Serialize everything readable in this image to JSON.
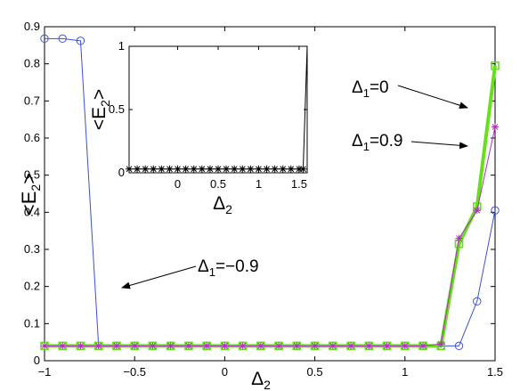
{
  "chart_data": [
    {
      "type": "line",
      "title": "",
      "xlabel": "Δ2",
      "ylabel": "<E2>",
      "xlim": [
        -1,
        1.5
      ],
      "ylim": [
        0,
        0.9
      ],
      "xticks": [
        -1,
        -0.5,
        0,
        0.5,
        1,
        1.5
      ],
      "xtick_labels": [
        "−1",
        "−0.5",
        "0",
        "0.5",
        "1",
        "1.5"
      ],
      "yticks": [
        0,
        0.1,
        0.2,
        0.3,
        0.4,
        0.5,
        0.6,
        0.7,
        0.8,
        0.9
      ],
      "ytick_labels": [
        "0",
        "0.1",
        "0.2",
        "0.3",
        "0.4",
        "0.5",
        "0.6",
        "0.7",
        "0.8",
        "0.9"
      ],
      "grid": false,
      "x": [
        -1,
        -0.9,
        -0.8,
        -0.7,
        -0.6,
        -0.5,
        -0.4,
        -0.3,
        -0.2,
        -0.1,
        0,
        0.1,
        0.2,
        0.3,
        0.4,
        0.5,
        0.6,
        0.7,
        0.8,
        0.9,
        1.0,
        1.1,
        1.2,
        1.3,
        1.4,
        1.5
      ],
      "series": [
        {
          "color": "#3c50d8",
          "marker": "circle",
          "width": 1,
          "values": [
            0.868,
            0.868,
            0.862,
            0.04,
            0.04,
            0.04,
            0.04,
            0.04,
            0.04,
            0.04,
            0.04,
            0.04,
            0.04,
            0.04,
            0.04,
            0.04,
            0.04,
            0.04,
            0.04,
            0.04,
            0.04,
            0.04,
            0.04,
            0.04,
            0.16,
            0.405
          ]
        },
        {
          "color": "#66e01a",
          "marker": "square",
          "width": 4,
          "values": [
            0.04,
            0.04,
            0.04,
            0.04,
            0.04,
            0.04,
            0.04,
            0.04,
            0.04,
            0.04,
            0.04,
            0.04,
            0.04,
            0.04,
            0.04,
            0.04,
            0.04,
            0.04,
            0.04,
            0.04,
            0.04,
            0.04,
            0.04,
            0.315,
            0.415,
            0.795
          ]
        },
        {
          "color": "#b030c0",
          "marker": "star",
          "width": 1,
          "values": [
            0.04,
            0.04,
            0.04,
            0.04,
            0.04,
            0.04,
            0.04,
            0.04,
            0.04,
            0.04,
            0.04,
            0.04,
            0.04,
            0.04,
            0.04,
            0.04,
            0.04,
            0.04,
            0.04,
            0.04,
            0.04,
            0.04,
            0.045,
            0.33,
            0.405,
            0.63
          ]
        }
      ],
      "annotations": [
        {
          "text": "Δ1=0",
          "points_to": [
            1.5,
            0.795
          ]
        },
        {
          "text": "Δ1=0.9",
          "points_to": [
            1.5,
            0.63
          ]
        },
        {
          "text": "Δ1=−0.9",
          "points_to": [
            -0.7,
            0.04
          ]
        }
      ]
    },
    {
      "type": "line",
      "title": "",
      "xlabel": "Δ2",
      "ylabel": "<E2>",
      "xlim": [
        -0.6,
        1.6
      ],
      "ylim": [
        0,
        1
      ],
      "xticks": [
        0,
        0.5,
        1,
        1.5
      ],
      "xtick_labels": [
        "0",
        "0.5",
        "1",
        "1.5"
      ],
      "yticks": [
        0,
        0.5,
        1
      ],
      "ytick_labels": [
        "0",
        "0.5",
        "1"
      ],
      "grid": false,
      "x": [
        -0.6,
        -0.5,
        -0.4,
        -0.3,
        -0.2,
        -0.1,
        0,
        0.1,
        0.2,
        0.3,
        0.4,
        0.5,
        0.6,
        0.7,
        0.8,
        0.9,
        1.0,
        1.1,
        1.2,
        1.3,
        1.4,
        1.5,
        1.55,
        1.6
      ],
      "series": [
        {
          "color": "#000000",
          "marker": "asterisk",
          "width": 1,
          "values": [
            0.03,
            0.03,
            0.03,
            0.03,
            0.03,
            0.03,
            0.03,
            0.03,
            0.03,
            0.03,
            0.03,
            0.03,
            0.03,
            0.03,
            0.03,
            0.03,
            0.03,
            0.03,
            0.03,
            0.03,
            0.03,
            0.03,
            0.03,
            1.0
          ]
        }
      ]
    }
  ]
}
